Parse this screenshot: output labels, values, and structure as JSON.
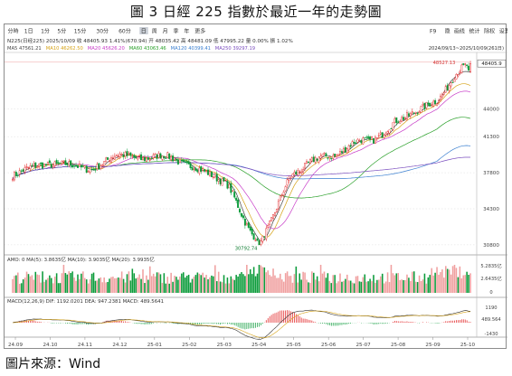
{
  "figure_title": "圖 3 日經 225 指數於最近一年的走勢圖",
  "source_label": "圖片來源：",
  "source_name": "Wind",
  "toolbar": {
    "periods": [
      "分時",
      "1日",
      "1分",
      "5分",
      "15分",
      "30分",
      "60分",
      "日",
      "周",
      "月",
      "季",
      "年",
      "更多"
    ],
    "selected_period": "日",
    "right_items": [
      "F9",
      "隐",
      "画线",
      "统计",
      "除权",
      "设置"
    ]
  },
  "info_line": {
    "code": "N225(日经225)",
    "date": "2025/10/09",
    "close": "48405.93",
    "change": "1.41%(670.94)",
    "open": "48035.42",
    "high": "48481.09",
    "low": "47995.22",
    "volume": "0.00%",
    "amplitude": "1.02%"
  },
  "ma_line": {
    "ma5": "MA5 47561.21",
    "ma10": "MA10 46262.50",
    "ma20": "MA20 45626.20",
    "ma60": "MA60 43063.46",
    "ma120": "MA120 40399.41",
    "ma250": "MA250 39297.19"
  },
  "range_label": "2024/09/13~2025/10/09(261日)",
  "annotations": {
    "high_marker": "48527.13",
    "low_marker": "30792.74",
    "last_price": "48405.9"
  },
  "price_axis": {
    "ticks": [
      {
        "value": 44000,
        "label": "44000"
      },
      {
        "value": 41300,
        "label": "41300"
      },
      {
        "value": 37800,
        "label": "37800"
      },
      {
        "value": 34300,
        "label": "34300"
      },
      {
        "value": 30800,
        "label": "30800"
      }
    ]
  },
  "volume_panel": {
    "header": "AMO: 0  MA(5): 3.8635亿  MA(10): 3.9035亿  MA(20): 3.9935亿",
    "ticks": [
      "5.2835亿",
      "2.6435亿",
      "0"
    ]
  },
  "macd_panel": {
    "header": "MACD(12,26,9)  DIF: 1192.0201  DEA: 947.2381  MACD: 489.5641",
    "ticks": [
      "1190",
      "489.564",
      "-1430"
    ]
  },
  "x_axis": {
    "labels": [
      "24.09",
      "24.10",
      "24.11",
      "24.12",
      "25-01",
      "25-02",
      "25-03",
      "25-04",
      "25-05",
      "25-06",
      "25-07",
      "25-08",
      "25-09",
      "25-10"
    ]
  },
  "colors": {
    "up": "#e0191b",
    "down": "#0b9b3a",
    "ma5": "#444444",
    "ma10": "#d6a318",
    "ma20": "#c83cc8",
    "ma60": "#2aa02a",
    "ma120": "#3a7fd0",
    "ma250": "#7b4fbf"
  },
  "chart_data": {
    "type": "candlestick",
    "title": "圖 3 日經 225 指數於最近一年的走勢圖",
    "ylim": [
      30000,
      50000
    ],
    "x_range": [
      "2024/09/13",
      "2025/10/09"
    ],
    "points": [
      {
        "x": "2024-09",
        "y": 37500
      },
      {
        "x": "2024-10",
        "y": 38800
      },
      {
        "x": "2024-11",
        "y": 38200
      },
      {
        "x": "2024-12",
        "y": 39300
      },
      {
        "x": "2025-01",
        "y": 39400
      },
      {
        "x": "2025-02",
        "y": 38700
      },
      {
        "x": "2025-03",
        "y": 36800
      },
      {
        "x": "2025-04",
        "y": 31200
      },
      {
        "x": "2025-05",
        "y": 37800
      },
      {
        "x": "2025-06",
        "y": 39600
      },
      {
        "x": "2025-07",
        "y": 40800
      },
      {
        "x": "2025-08",
        "y": 42800
      },
      {
        "x": "2025-09",
        "y": 44900
      },
      {
        "x": "2025-10",
        "y": 48405.93
      }
    ],
    "series": [
      {
        "name": "MA5",
        "last": 47561.21
      },
      {
        "name": "MA10",
        "last": 46262.5
      },
      {
        "name": "MA20",
        "last": 45626.2
      },
      {
        "name": "MA60",
        "last": 43063.46
      },
      {
        "name": "MA120",
        "last": 40399.41
      },
      {
        "name": "MA250",
        "last": 39297.19
      }
    ],
    "max_marker": 48527.13,
    "min_marker": 30792.74
  }
}
